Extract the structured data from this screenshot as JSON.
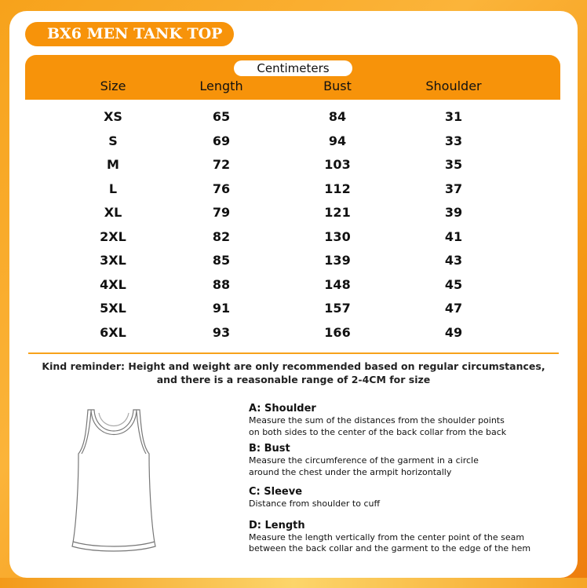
{
  "title": "BX6 MEN TANK TOP",
  "unit": "Centimeters",
  "headers": [
    "Size",
    "Length",
    "Bust",
    "Shoulder"
  ],
  "rows": [
    [
      "XS",
      "65",
      "84",
      "31"
    ],
    [
      "S",
      "69",
      "94",
      "33"
    ],
    [
      "M",
      "72",
      "103",
      "35"
    ],
    [
      "L",
      "76",
      "112",
      "37"
    ],
    [
      "XL",
      "79",
      "121",
      "39"
    ],
    [
      "2XL",
      "82",
      "130",
      "41"
    ],
    [
      "3XL",
      "85",
      "139",
      "43"
    ],
    [
      "4XL",
      "88",
      "148",
      "45"
    ],
    [
      "5XL",
      "91",
      "157",
      "47"
    ],
    [
      "6XL",
      "93",
      "166",
      "49"
    ]
  ],
  "reminder": [
    "Kind reminder: Height and weight are only recommended based on regular circumstances,",
    "and there is a reasonable range of 2-4CM for size"
  ],
  "measures": [
    {
      "title": "A: Shoulder",
      "lines": [
        "Measure the sum of the distances from the shoulder points",
        "on both sides to the center of the back collar from the back"
      ]
    },
    {
      "title": "B: Bust",
      "lines": [
        "Measure the circumference of the garment in a circle",
        "around the chest under the armpit horizontally"
      ]
    },
    {
      "title": "C: Sleeve",
      "lines": [
        "Distance from shoulder to cuff"
      ]
    },
    {
      "title": "D: Length",
      "lines": [
        "Measure the length vertically from the center point of the seam",
        "between the back collar and the garment to the edge of the hem"
      ]
    }
  ],
  "colors": {
    "accent": "#f7930a",
    "rule": "#f7a21b"
  }
}
